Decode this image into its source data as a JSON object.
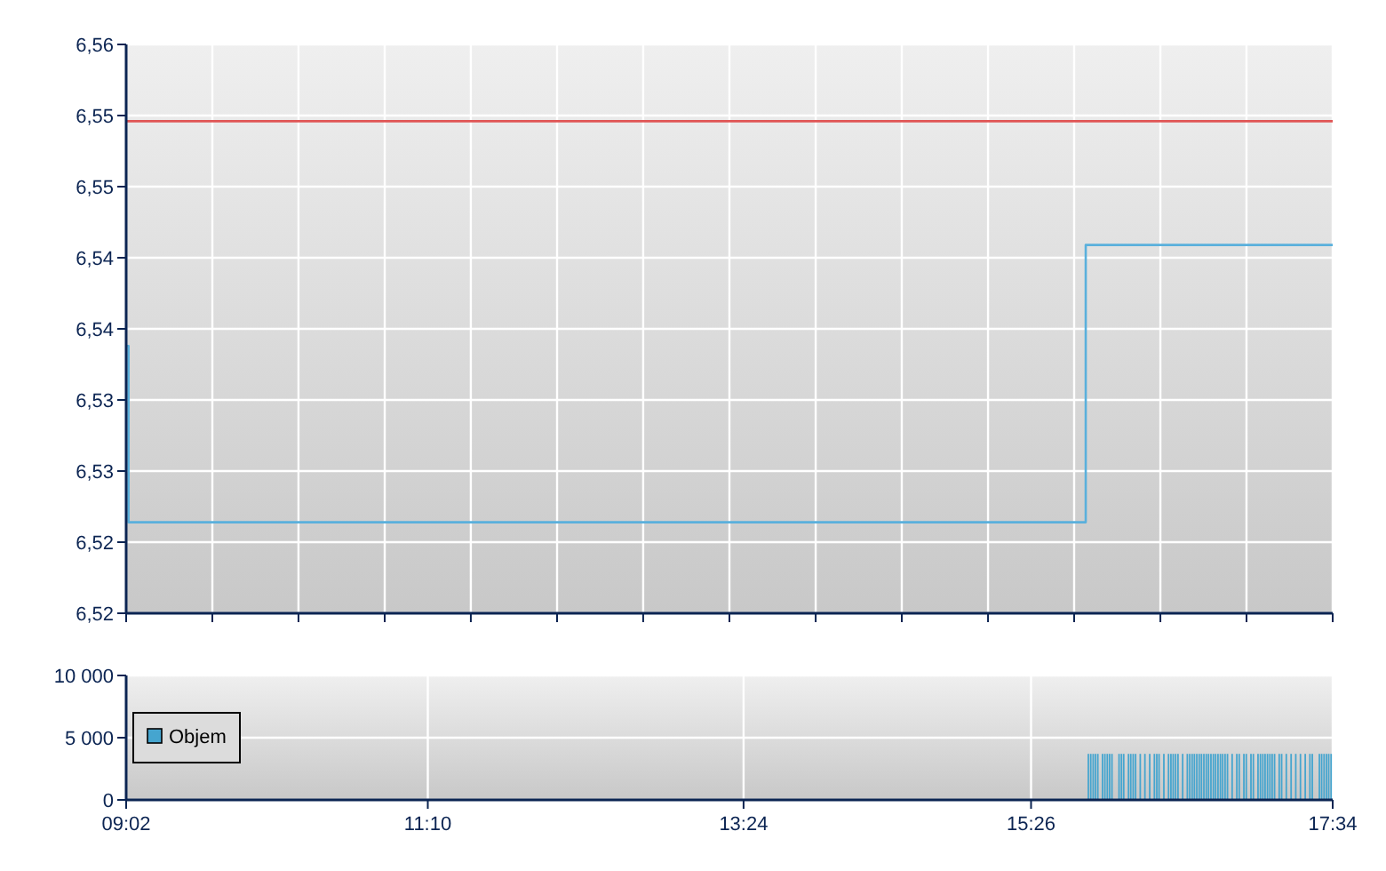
{
  "chart_data": [
    {
      "type": "step",
      "xlim": [
        9.0333,
        17.5667
      ],
      "ylim": [
        6.52,
        6.56
      ],
      "xticks": [
        {
          "value": 9.0333,
          "label": null
        },
        {
          "value": 9.643,
          "label": null
        },
        {
          "value": 10.252,
          "label": null
        },
        {
          "value": 10.862,
          "label": null
        },
        {
          "value": 11.471,
          "label": null
        },
        {
          "value": 12.081,
          "label": null
        },
        {
          "value": 12.69,
          "label": null
        },
        {
          "value": 13.3,
          "label": null
        },
        {
          "value": 13.91,
          "label": null
        },
        {
          "value": 14.519,
          "label": null
        },
        {
          "value": 15.129,
          "label": null
        },
        {
          "value": 15.738,
          "label": null
        },
        {
          "value": 16.348,
          "label": null
        },
        {
          "value": 16.957,
          "label": null
        },
        {
          "value": 17.5667,
          "label": null
        }
      ],
      "yticks": [
        {
          "value": 6.52,
          "label": "6,52"
        },
        {
          "value": 6.525,
          "label": "6,52"
        },
        {
          "value": 6.53,
          "label": "6,53"
        },
        {
          "value": 6.535,
          "label": "6,53"
        },
        {
          "value": 6.54,
          "label": "6,54"
        },
        {
          "value": 6.545,
          "label": "6,54"
        },
        {
          "value": 6.55,
          "label": "6,55"
        },
        {
          "value": 6.555,
          "label": "6,55"
        },
        {
          "value": 6.56,
          "label": "6,56"
        }
      ],
      "tick_labels": "y",
      "grid": true,
      "series": [
        {
          "color": "#5ab0dc",
          "x": [
            9.0333,
            9.05,
            15.82,
            17.5667
          ],
          "values": [
            6.5388,
            6.5264,
            6.5459,
            6.5459
          ]
        }
      ],
      "ref_lines": [
        {
          "axis": "y",
          "value": 6.5546,
          "color": "#e05555"
        }
      ]
    },
    {
      "type": "bar",
      "xlim": [
        9.0333,
        17.5667
      ],
      "ylim": [
        0,
        10000
      ],
      "xticks": [
        {
          "value": 9.0333,
          "label": "09:02"
        },
        {
          "value": 11.1667,
          "label": "11:10"
        },
        {
          "value": 13.4,
          "label": "13:24"
        },
        {
          "value": 15.4333,
          "label": "15:26"
        },
        {
          "value": 17.5667,
          "label": "17:34"
        }
      ],
      "yticks": [
        0,
        {
          "value": 5000,
          "label": "5 000"
        },
        {
          "value": 10000,
          "label": "10 000"
        }
      ],
      "grid": true,
      "legend": "left",
      "x": [
        15.833,
        15.85,
        15.867,
        15.883,
        15.9,
        15.917,
        15.933,
        15.95,
        15.967,
        15.983,
        16,
        16.017,
        16.033,
        16.05,
        16.067,
        16.083,
        16.1,
        16.117,
        16.133,
        16.15,
        16.167,
        16.183,
        16.2,
        16.217,
        16.233,
        16.25,
        16.267,
        16.283,
        16.3,
        16.317,
        16.333,
        16.35,
        16.367,
        16.383,
        16.4,
        16.417,
        16.433,
        16.45,
        16.467,
        16.483,
        16.5,
        16.517,
        16.533,
        16.55,
        16.567,
        16.583,
        16.6,
        16.617,
        16.633,
        16.65,
        16.667,
        16.683,
        16.7,
        16.717,
        16.733,
        16.75,
        16.767,
        16.783,
        16.8,
        16.817,
        16.833,
        16.85,
        16.867,
        16.883,
        16.9,
        16.917,
        16.933,
        16.95,
        16.967,
        16.983,
        17,
        17.017,
        17.033,
        17.05,
        17.067,
        17.083,
        17.1,
        17.117,
        17.133,
        17.15,
        17.167,
        17.183,
        17.2,
        17.217,
        17.233,
        17.25,
        17.267,
        17.283,
        17.3,
        17.317,
        17.333,
        17.35,
        17.367,
        17.383,
        17.4,
        17.417,
        17.433,
        17.45,
        17.467,
        17.483,
        17.5,
        17.517,
        17.533,
        17.55
      ],
      "series": [
        {
          "name": "Objem",
          "color": "#45a5cf",
          "values": [
            3700,
            3700,
            3700,
            3700,
            3700,
            null,
            3700,
            3700,
            3700,
            3700,
            3700,
            null,
            null,
            3700,
            3700,
            3700,
            null,
            3700,
            3700,
            3700,
            3700,
            null,
            3700,
            null,
            3700,
            null,
            3700,
            null,
            3700,
            3700,
            3700,
            null,
            3700,
            null,
            3700,
            3700,
            3700,
            3700,
            3700,
            null,
            3700,
            null,
            3700,
            3700,
            3700,
            3700,
            3700,
            3700,
            3700,
            3700,
            3700,
            3700,
            3700,
            3700,
            3700,
            3700,
            3700,
            3700,
            3700,
            3700,
            null,
            3700,
            null,
            3700,
            3700,
            null,
            3700,
            3700,
            null,
            3700,
            3700,
            null,
            3700,
            3700,
            3700,
            3700,
            3700,
            3700,
            3700,
            3700,
            null,
            3700,
            3700,
            null,
            3700,
            null,
            3700,
            null,
            3700,
            null,
            3700,
            null,
            3700,
            null,
            3700,
            3700,
            null,
            null,
            3700,
            3700,
            3700,
            3700,
            3700,
            3700
          ]
        }
      ]
    }
  ]
}
